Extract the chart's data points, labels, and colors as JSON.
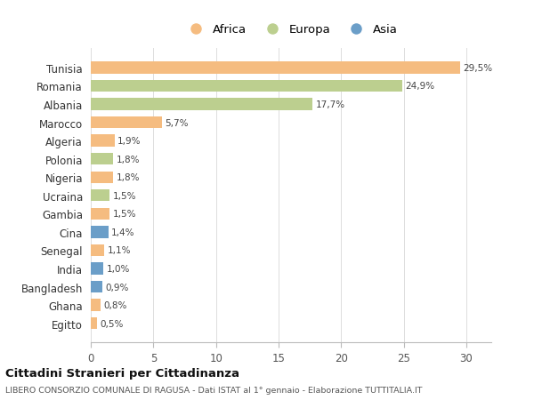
{
  "categories": [
    "Tunisia",
    "Romania",
    "Albania",
    "Marocco",
    "Algeria",
    "Polonia",
    "Nigeria",
    "Ucraina",
    "Gambia",
    "Cina",
    "Senegal",
    "India",
    "Bangladesh",
    "Ghana",
    "Egitto"
  ],
  "values": [
    29.5,
    24.9,
    17.7,
    5.7,
    1.9,
    1.8,
    1.8,
    1.5,
    1.5,
    1.4,
    1.1,
    1.0,
    0.9,
    0.8,
    0.5
  ],
  "labels": [
    "29,5%",
    "24,9%",
    "17,7%",
    "5,7%",
    "1,9%",
    "1,8%",
    "1,8%",
    "1,5%",
    "1,5%",
    "1,4%",
    "1,1%",
    "1,0%",
    "0,9%",
    "0,8%",
    "0,5%"
  ],
  "continents": [
    "Africa",
    "Europa",
    "Europa",
    "Africa",
    "Africa",
    "Europa",
    "Africa",
    "Europa",
    "Africa",
    "Asia",
    "Africa",
    "Asia",
    "Asia",
    "Africa",
    "Africa"
  ],
  "colors": {
    "Africa": "#F5BC80",
    "Europa": "#BCCF8F",
    "Asia": "#6B9EC8"
  },
  "legend_labels": [
    "Africa",
    "Europa",
    "Asia"
  ],
  "legend_colors": [
    "#F5BC80",
    "#BCCF8F",
    "#6B9EC8"
  ],
  "title": "Cittadini Stranieri per Cittadinanza",
  "subtitle": "LIBERO CONSORZIO COMUNALE DI RAGUSA - Dati ISTAT al 1° gennaio - Elaborazione TUTTITALIA.IT",
  "xlim": [
    0,
    32
  ],
  "xticks": [
    0,
    5,
    10,
    15,
    20,
    25,
    30
  ],
  "bg_color": "#ffffff",
  "grid_color": "#dddddd"
}
